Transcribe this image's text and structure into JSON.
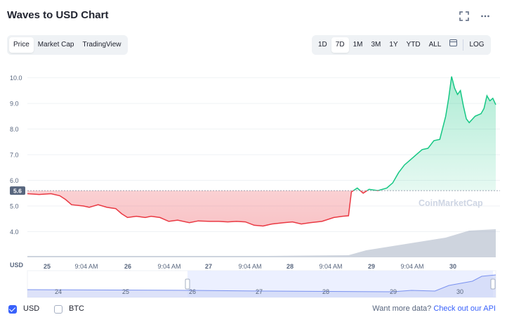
{
  "header": {
    "title": "Waves to USD Chart",
    "icons": [
      "fullscreen-icon",
      "more-icon"
    ]
  },
  "chart_tabs": [
    "Price",
    "Market Cap",
    "TradingView"
  ],
  "chart_tabs_active": "Price",
  "range_tabs": [
    "1D",
    "7D",
    "1M",
    "3M",
    "1Y",
    "YTD",
    "ALL"
  ],
  "range_tabs_active": "7D",
  "log_label": "LOG",
  "watermark": "CoinMarketCap",
  "footer": {
    "currencies": [
      {
        "label": "USD",
        "checked": true
      },
      {
        "label": "BTC",
        "checked": false
      }
    ],
    "api_text": "Want more data?",
    "api_link": "Check out our API"
  },
  "colors": {
    "up": "#16c784",
    "down": "#ea3943",
    "accent": "#3861fb",
    "volume": "#a6b0c3"
  },
  "chart_data": {
    "type": "line",
    "y_axis_label": "USD",
    "y_ticks": [
      "10.0",
      "9.0",
      "8.0",
      "7.0",
      "6.0",
      "5.0",
      "4.0"
    ],
    "ylim": [
      3.0,
      10.4
    ],
    "baseline_value": 5.6,
    "baseline_label": "5.6",
    "x_ticks": [
      "25",
      "9:04 AM",
      "26",
      "9:04 AM",
      "27",
      "9:04 AM",
      "28",
      "9:04 AM",
      "29",
      "9:04 AM",
      "30"
    ],
    "navigator_ticks": [
      "24",
      "25",
      "26",
      "27",
      "28",
      "29",
      "30"
    ],
    "grid": true,
    "series": [
      {
        "values": [
          [
            0.0,
            5.48
          ],
          [
            0.04,
            5.45
          ],
          [
            0.08,
            5.48
          ],
          [
            0.11,
            5.4
          ],
          [
            0.13,
            5.25
          ],
          [
            0.15,
            5.05
          ],
          [
            0.19,
            5.0
          ],
          [
            0.21,
            4.95
          ],
          [
            0.24,
            5.05
          ],
          [
            0.27,
            4.95
          ],
          [
            0.3,
            4.9
          ],
          [
            0.32,
            4.7
          ],
          [
            0.34,
            4.55
          ],
          [
            0.37,
            4.6
          ],
          [
            0.4,
            4.55
          ],
          [
            0.42,
            4.6
          ],
          [
            0.45,
            4.55
          ],
          [
            0.48,
            4.4
          ],
          [
            0.51,
            4.45
          ],
          [
            0.55,
            4.35
          ],
          [
            0.58,
            4.42
          ],
          [
            0.62,
            4.4
          ],
          [
            0.65,
            4.4
          ],
          [
            0.68,
            4.38
          ],
          [
            0.71,
            4.4
          ],
          [
            0.74,
            4.38
          ],
          [
            0.77,
            4.25
          ],
          [
            0.8,
            4.22
          ],
          [
            0.83,
            4.3
          ],
          [
            0.87,
            4.35
          ],
          [
            0.9,
            4.38
          ],
          [
            0.93,
            4.3
          ],
          [
            0.96,
            4.35
          ],
          [
            1.0,
            4.4
          ],
          [
            1.04,
            4.55
          ],
          [
            1.07,
            4.6
          ],
          [
            1.09,
            4.62
          ],
          [
            1.1,
            5.55
          ],
          [
            1.12,
            5.7
          ],
          [
            1.14,
            5.5
          ],
          [
            1.16,
            5.65
          ],
          [
            1.19,
            5.6
          ],
          [
            1.22,
            5.7
          ],
          [
            1.24,
            5.9
          ],
          [
            1.26,
            6.3
          ],
          [
            1.28,
            6.6
          ],
          [
            1.3,
            6.8
          ],
          [
            1.32,
            7.0
          ],
          [
            1.34,
            7.2
          ],
          [
            1.36,
            7.25
          ],
          [
            1.38,
            7.55
          ],
          [
            1.4,
            7.6
          ],
          [
            1.42,
            8.5
          ],
          [
            1.43,
            9.2
          ],
          [
            1.44,
            10.05
          ],
          [
            1.45,
            9.6
          ],
          [
            1.46,
            9.35
          ],
          [
            1.47,
            9.5
          ],
          [
            1.48,
            8.9
          ],
          [
            1.49,
            8.4
          ],
          [
            1.5,
            8.25
          ],
          [
            1.52,
            8.5
          ],
          [
            1.54,
            8.6
          ],
          [
            1.55,
            8.8
          ],
          [
            1.56,
            9.3
          ],
          [
            1.57,
            9.1
          ],
          [
            1.58,
            9.2
          ],
          [
            1.59,
            8.95
          ]
        ]
      }
    ]
  }
}
